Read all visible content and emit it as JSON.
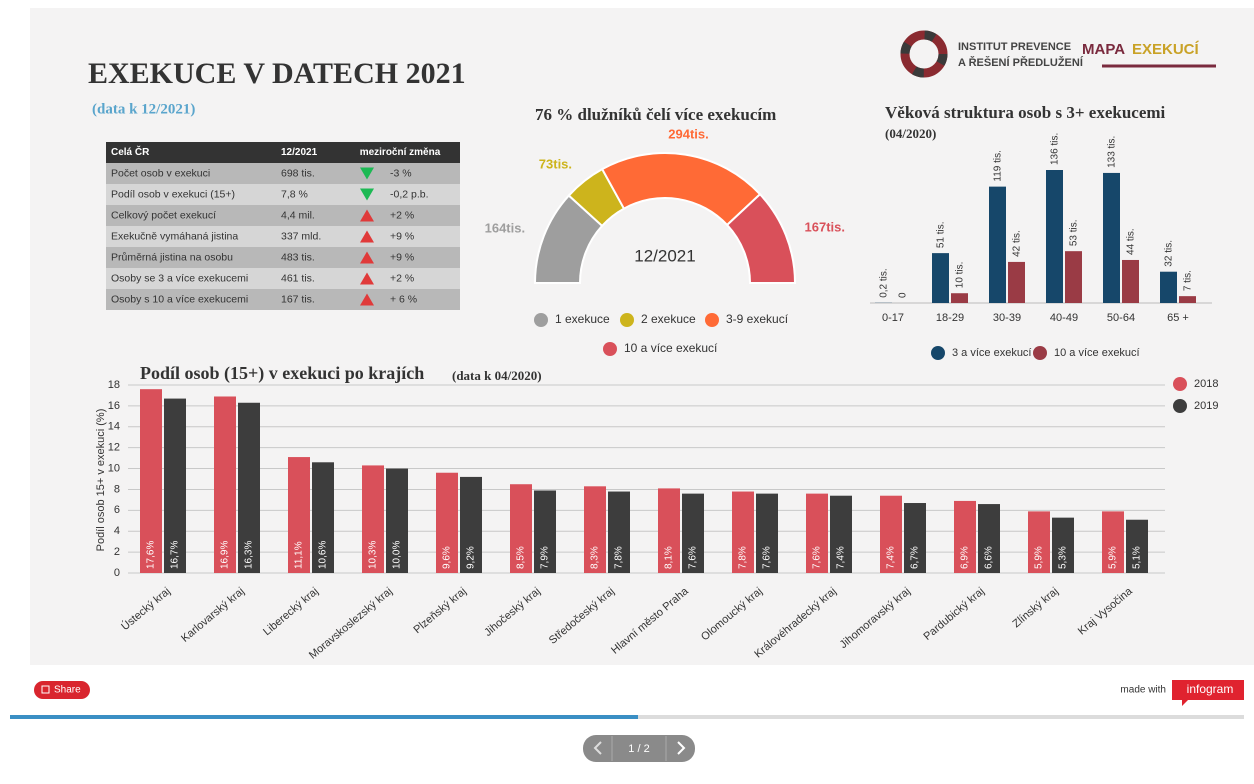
{
  "header": {
    "title": "EXEKUCE V DATECH 2021",
    "subtitle": "(data k 12/2021)",
    "logo_line1": "INSTITUT PREVENCE",
    "logo_line2": "A ŘEŠENÍ PŘEDLUŽENÍ",
    "brand_a": "MAPA",
    "brand_b": "EXEKUCÍ"
  },
  "table": {
    "columns": [
      "Celá ČR",
      "12/2021",
      "meziroční změna"
    ],
    "rows": [
      {
        "label": "Počet osob v exekuci",
        "value": "698 tis.",
        "change": "-3 %",
        "trend": "down"
      },
      {
        "label": "Podíl osob v exekuci (15+)",
        "value": "7,8 %",
        "change": "-0,2 p.b.",
        "trend": "down"
      },
      {
        "label": "Celkový počet exekucí",
        "value": "4,4 mil.",
        "change": "+2 %",
        "trend": "up"
      },
      {
        "label": "Exekučně vymáhaná jistina",
        "value": "337 mld.",
        "change": "+9 %",
        "trend": "up"
      },
      {
        "label": "Průměrná jistina na osobu",
        "value": "483 tis.",
        "change": "+9 %",
        "trend": "up"
      },
      {
        "label": "Osoby se 3 a více exekucemi",
        "value": "461 tis.",
        "change": "+2 %",
        "trend": "up"
      },
      {
        "label": "Osoby s 10 a více exekucemi",
        "value": "167 tis.",
        "change": "+ 6 %",
        "trend": "up"
      }
    ]
  },
  "chart_data": [
    {
      "type": "pie",
      "title": "76 % dlužníků čelí více exekucím",
      "center_label": "12/2021",
      "categories": [
        "1 exekuce",
        "2 exekuce",
        "3-9 exekucí",
        "10 a více exekucí"
      ],
      "values": [
        164,
        73,
        294,
        167
      ],
      "value_labels": [
        "164tis.",
        "73tis.",
        "294tis.",
        "167tis."
      ],
      "colors": [
        "#9e9e9e",
        "#cdb41c",
        "#ff6a36",
        "#d9505a"
      ]
    },
    {
      "type": "bar",
      "title": "Věková struktura osob s 3+ exekucemi",
      "subtitle": "(04/2020)",
      "categories": [
        "0-17",
        "18-29",
        "30-39",
        "40-49",
        "50-64",
        "65 +"
      ],
      "series": [
        {
          "name": "3 a více exekucí",
          "color": "#16476a",
          "values": [
            0.2,
            51,
            119,
            136,
            133,
            32
          ],
          "value_labels": [
            "0,2 tis.",
            "51 tis.",
            "119 tis.",
            "136 tis.",
            "133 tis.",
            "32 tis."
          ]
        },
        {
          "name": "10 a více exekucí",
          "color": "#9a3b45",
          "values": [
            0,
            10,
            42,
            53,
            44,
            7
          ],
          "value_labels": [
            "0",
            "10 tis.",
            "42 tis.",
            "53 tis.",
            "44 tis.",
            "7 tis."
          ]
        }
      ]
    },
    {
      "type": "bar",
      "title": "Podíl osob (15+) v exekuci po krajích",
      "subtitle": "(data k 04/2020)",
      "y_label": "Podíl osob 15+ v exekuci (%)",
      "categories": [
        "Ústecký kraj",
        "Karlovarský kraj",
        "Liberecký kraj",
        "Moravskoslezský kraj",
        "Plzeňský kraj",
        "Jihočeský kraj",
        "Středočeský kraj",
        "Hlavní město Praha",
        "Olomoucký kraj",
        "Královéhradecký kraj",
        "Jihomoravský kraj",
        "Pardubický kraj",
        "Zlínský kraj",
        "Kraj Vysočina"
      ],
      "series": [
        {
          "name": "2018",
          "color": "#d9505a",
          "values": [
            17.6,
            16.9,
            11.1,
            10.3,
            9.6,
            8.5,
            8.3,
            8.1,
            7.8,
            7.6,
            7.4,
            6.9,
            5.9,
            5.9
          ],
          "value_labels": [
            "17,6%",
            "16,9%",
            "11,1%",
            "10,3%",
            "9,6%",
            "8,5%",
            "8,3%",
            "8,1%",
            "7,8%",
            "7,6%",
            "7,4%",
            "6,9%",
            "5,9%",
            "5,9%"
          ]
        },
        {
          "name": "2019",
          "color": "#3d3d3d",
          "values": [
            16.7,
            16.3,
            10.6,
            10.0,
            9.2,
            7.9,
            7.8,
            7.6,
            7.6,
            7.4,
            6.7,
            6.6,
            5.3,
            5.1
          ],
          "value_labels": [
            "16,7%",
            "16,3%",
            "10,6%",
            "10,0%",
            "9,2%",
            "7,9%",
            "7,8%",
            "7,6%",
            "7,6%",
            "7,4%",
            "6,7%",
            "6,6%",
            "5,3%",
            "5,1%"
          ]
        }
      ],
      "ylim": [
        0,
        18
      ],
      "yticks": [
        0,
        2,
        4,
        6,
        8,
        10,
        12,
        14,
        16,
        18
      ],
      "grid": true,
      "legend": "top-right"
    }
  ],
  "footer": {
    "share": "Share",
    "made_with": "made with",
    "brand": "infogram",
    "page": "1 / 2"
  }
}
